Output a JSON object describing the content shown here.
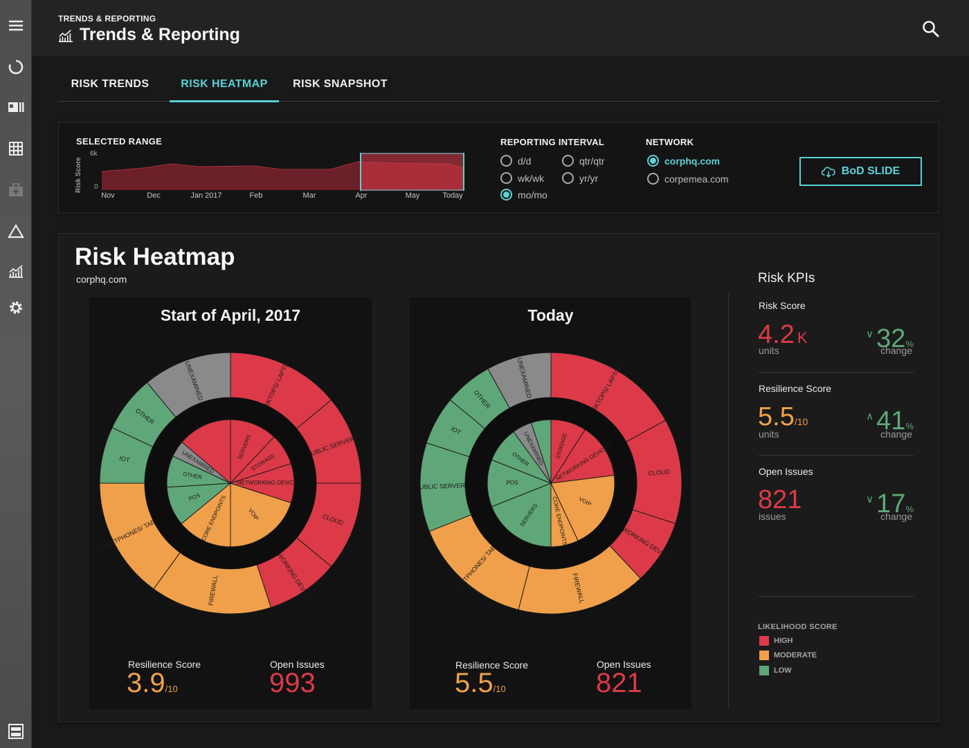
{
  "header": {
    "breadcrumb": "TRENDS & REPORTING",
    "title": "Trends & Reporting"
  },
  "tabs": [
    {
      "label": "RISK TRENDS",
      "active": false
    },
    {
      "label": "RISK HEATMAP",
      "active": true
    },
    {
      "label": "RISK SNAPSHOT",
      "active": false
    }
  ],
  "range": {
    "label": "SELECTED RANGE",
    "y_axis_label": "Risk Score",
    "y_max_label": "6k",
    "y_min_label": "0",
    "x_ticks": [
      "Nov",
      "Dec",
      "Jan 2017",
      "Feb",
      "Mar",
      "Apr",
      "May",
      "Today"
    ]
  },
  "interval": {
    "label": "REPORTING INTERVAL",
    "options": [
      {
        "label": "d/d",
        "selected": false
      },
      {
        "label": "qtr/qtr",
        "selected": false
      },
      {
        "label": "wk/wk",
        "selected": false
      },
      {
        "label": "yr/yr",
        "selected": false
      },
      {
        "label": "mo/mo",
        "selected": true
      }
    ]
  },
  "network": {
    "label": "NETWORK",
    "options": [
      {
        "label": "corphq.com",
        "selected": true
      },
      {
        "label": "corpemea.com",
        "selected": false
      }
    ]
  },
  "bod_button": "BoD SLIDE",
  "heatmap": {
    "title": "Risk Heatmap",
    "subtitle": "corphq.com",
    "cards": [
      {
        "title": "Start of April, 2017",
        "resilience_label": "Resilience Score",
        "resilience_value": "3.9",
        "resilience_suffix": "/10",
        "issues_label": "Open Issues",
        "issues_value": "993"
      },
      {
        "title": "Today",
        "resilience_label": "Resilience Score",
        "resilience_value": "5.5",
        "resilience_suffix": "/10",
        "issues_label": "Open Issues",
        "issues_value": "821"
      }
    ]
  },
  "kpis": {
    "title": "Risk KPIs",
    "items": [
      {
        "label": "Risk Score",
        "value": "4.2",
        "suffix": "K",
        "unit": "units",
        "arrow": "∨",
        "change": "32",
        "change_suffix": "%",
        "change_label": "change"
      },
      {
        "label": "Resilience Score",
        "value": "5.5",
        "suffix": "/10",
        "unit": "units",
        "arrow": "∧",
        "change": "41",
        "change_suffix": "%",
        "change_label": "change"
      },
      {
        "label": "Open Issues",
        "value": "821",
        "suffix": "",
        "unit": "issues",
        "arrow": "∨",
        "change": "17",
        "change_suffix": "%",
        "change_label": "change"
      }
    ]
  },
  "legend": {
    "title": "LIKELIHOOD SCORE",
    "items": [
      {
        "label": "HIGH",
        "color": "#dc3a48"
      },
      {
        "label": "MODERATE",
        "color": "#f0a04a"
      },
      {
        "label": "LOW",
        "color": "#5fa778"
      }
    ]
  },
  "colors": {
    "high": "#dc3a48",
    "moderate": "#f0a04a",
    "low": "#5fa778",
    "unexamined": "#8a8a8a",
    "accent": "#5ad1d6"
  },
  "sunbursts": [
    {
      "inner": [
        {
          "label": "SERVERS",
          "pct": 12,
          "level": "high"
        },
        {
          "label": "STORAGE",
          "pct": 8,
          "level": "high"
        },
        {
          "label": "NETWORKING DEVICES",
          "pct": 10,
          "level": "high"
        },
        {
          "label": "VOIP",
          "pct": 20,
          "level": "moderate"
        },
        {
          "label": "CORE ENDPOINTS",
          "pct": 14,
          "level": "moderate"
        },
        {
          "label": "POS",
          "pct": 10,
          "level": "low"
        },
        {
          "label": "OTHER",
          "pct": 8,
          "level": "low"
        },
        {
          "label": "UNEXAMINED",
          "pct": 4.2,
          "level": "unexamined"
        },
        {
          "label": "",
          "pct": 13.8,
          "level": "high"
        }
      ],
      "outer": [
        {
          "label": "DESKTOPS/ LAPTOPS",
          "pct": 14,
          "level": "high"
        },
        {
          "label": "PUBLIC SERVERS",
          "pct": 11,
          "level": "high"
        },
        {
          "label": "CLOUD",
          "pct": 11,
          "level": "high"
        },
        {
          "label": "NETWORKING DEVICES",
          "pct": 9,
          "level": "high"
        },
        {
          "label": "FIREWALL",
          "pct": 15,
          "level": "moderate"
        },
        {
          "label": "SMARTPHONES/ TABLETS",
          "pct": 15,
          "level": "moderate"
        },
        {
          "label": "IOT",
          "pct": 7,
          "level": "low"
        },
        {
          "label": "OTHER",
          "pct": 7,
          "level": "low"
        },
        {
          "label": "UNEXAMINED",
          "pct": 11,
          "level": "unexamined"
        }
      ]
    },
    {
      "inner": [
        {
          "label": "STORAGE",
          "pct": 9,
          "level": "high"
        },
        {
          "label": "NETWORKING DEVICES",
          "pct": 14,
          "level": "high"
        },
        {
          "label": "VOIP",
          "pct": 20,
          "level": "moderate"
        },
        {
          "label": "CORE ENDPOINTS",
          "pct": 7,
          "level": "moderate"
        },
        {
          "label": "SERVERS",
          "pct": 19,
          "level": "low"
        },
        {
          "label": "POS",
          "pct": 12,
          "level": "low"
        },
        {
          "label": "OTHER",
          "pct": 9,
          "level": "low"
        },
        {
          "label": "UNEXAMINED",
          "pct": 5,
          "level": "unexamined"
        },
        {
          "label": "",
          "pct": 5,
          "level": "low"
        }
      ],
      "outer": [
        {
          "label": "DESKTOPS/ LAPTOPS",
          "pct": 17,
          "level": "high"
        },
        {
          "label": "CLOUD",
          "pct": 13,
          "level": "high"
        },
        {
          "label": "NETWORKING DEVICES",
          "pct": 8,
          "level": "high"
        },
        {
          "label": "FIREWALL",
          "pct": 16,
          "level": "moderate"
        },
        {
          "label": "SMARTPHONES/ TABLETS",
          "pct": 15,
          "level": "moderate"
        },
        {
          "label": "PUBLIC SERVERS",
          "pct": 11,
          "level": "low"
        },
        {
          "label": "IOT",
          "pct": 6,
          "level": "low"
        },
        {
          "label": "OTHER",
          "pct": 6,
          "level": "low"
        },
        {
          "label": "UNEXAMINED",
          "pct": 8,
          "level": "unexamined"
        }
      ]
    }
  ]
}
